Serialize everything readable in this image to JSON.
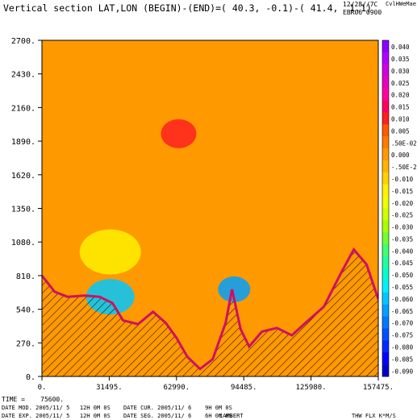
{
  "header": {
    "title": "Vertical section LAT,LON (BEGIN)-(END)=( 40.3, -0.1)-( 41.4,  1.1)",
    "run_date": "12/28//7C",
    "run_id": "EBR06 0900",
    "top_right": "CvlHWeMae"
  },
  "footer": {
    "time_line": "TIME =    75600.",
    "date_mod": "DATE MOD. 2005/11/ 5   12H 0M 0S",
    "date_cur": "DATE CUR. 2005/11/ 6    9H 0M 0S",
    "date_exp": "DATE EXP. 2005/11/ 5   12H 0M 0S",
    "date_seg": "DATE SEG. 2005/11/ 6    6H 0M 0S",
    "projection": "LAMBERT",
    "variable": "THW FLX K*M/S"
  },
  "colors": {
    "background_field": "#ff9900",
    "terrain_hatch": "#000000",
    "frame": "#000000"
  },
  "chart_data": {
    "type": "heatmap",
    "subtype": "vertical cross-section filled contour",
    "title": "Vertical section LAT,LON (BEGIN)-(END)=( 40.3, -0.1)-( 41.4,  1.1)",
    "xlabel": "",
    "ylabel": "",
    "xlim": [
      0,
      157475
    ],
    "ylim": [
      0,
      2700
    ],
    "x_ticks": [
      "0.",
      "31495.",
      "62990.",
      "94485.",
      "125980.",
      "157475."
    ],
    "y_ticks": [
      "0.",
      "270.",
      "540.",
      "810.",
      "1080.",
      "1350.",
      "1620.",
      "1890.",
      "2160.",
      "2430.",
      "2700."
    ],
    "x_tick_values": [
      0,
      31495,
      62990,
      94485,
      125980,
      157475
    ],
    "y_tick_values": [
      0,
      270,
      540,
      810,
      1080,
      1350,
      1620,
      1890,
      2160,
      2430,
      2700
    ],
    "terrain_profile": [
      [
        0,
        810
      ],
      [
        6000,
        680
      ],
      [
        12000,
        640
      ],
      [
        20000,
        650
      ],
      [
        27000,
        640
      ],
      [
        33000,
        590
      ],
      [
        38000,
        450
      ],
      [
        45000,
        420
      ],
      [
        52000,
        520
      ],
      [
        58000,
        430
      ],
      [
        63000,
        310
      ],
      [
        68000,
        160
      ],
      [
        74000,
        60
      ],
      [
        80000,
        140
      ],
      [
        86000,
        430
      ],
      [
        89000,
        700
      ],
      [
        93000,
        380
      ],
      [
        97000,
        240
      ],
      [
        103000,
        360
      ],
      [
        110000,
        390
      ],
      [
        117000,
        330
      ],
      [
        124000,
        440
      ],
      [
        132000,
        560
      ],
      [
        140000,
        830
      ],
      [
        146000,
        1020
      ],
      [
        152000,
        900
      ],
      [
        157475,
        620
      ]
    ],
    "colorbar": {
      "levels": [
        "0.040",
        "0.035",
        "0.030",
        "0.025",
        "0.020",
        "0.015",
        "0.010",
        "0.005",
        ".50E-02",
        "0.000",
        "-.50E-2",
        "-0.010",
        "-0.015",
        "-0.020",
        "-0.025",
        "-0.030",
        "-0.035",
        "-0.040",
        "-0.045",
        "-0.050",
        "-0.055",
        "-0.060",
        "-0.065",
        "-0.070",
        "-0.075",
        "-0.080",
        "-0.085",
        "-0.090"
      ],
      "colors": [
        "#8b00ff",
        "#b000ff",
        "#d100e0",
        "#e600c0",
        "#ff00a0",
        "#ff0060",
        "#ff2020",
        "#ff5a00",
        "#ff7a00",
        "#ff9900",
        "#ffb400",
        "#ffd200",
        "#fff000",
        "#f0ff00",
        "#d0ff00",
        "#a8ff00",
        "#70ff30",
        "#40ff70",
        "#20ffa0",
        "#00ffd0",
        "#00f0ff",
        "#00c8ff",
        "#00a0ff",
        "#0078ff",
        "#0050ff",
        "#0028ff",
        "#0000ff",
        "#0000c8"
      ]
    },
    "features": [
      {
        "value": "-0.015",
        "x": 32000,
        "y": 1000,
        "description": "positive anomaly core"
      },
      {
        "value": "-0.060",
        "x": 32000,
        "y": 640,
        "description": "strong negative core"
      },
      {
        "value": "0.010",
        "x": 64000,
        "y": 1950,
        "description": "isolated positive patch"
      },
      {
        "value": "-0.065",
        "x": 90000,
        "y": 700,
        "description": "negative core near ridge"
      }
    ]
  }
}
